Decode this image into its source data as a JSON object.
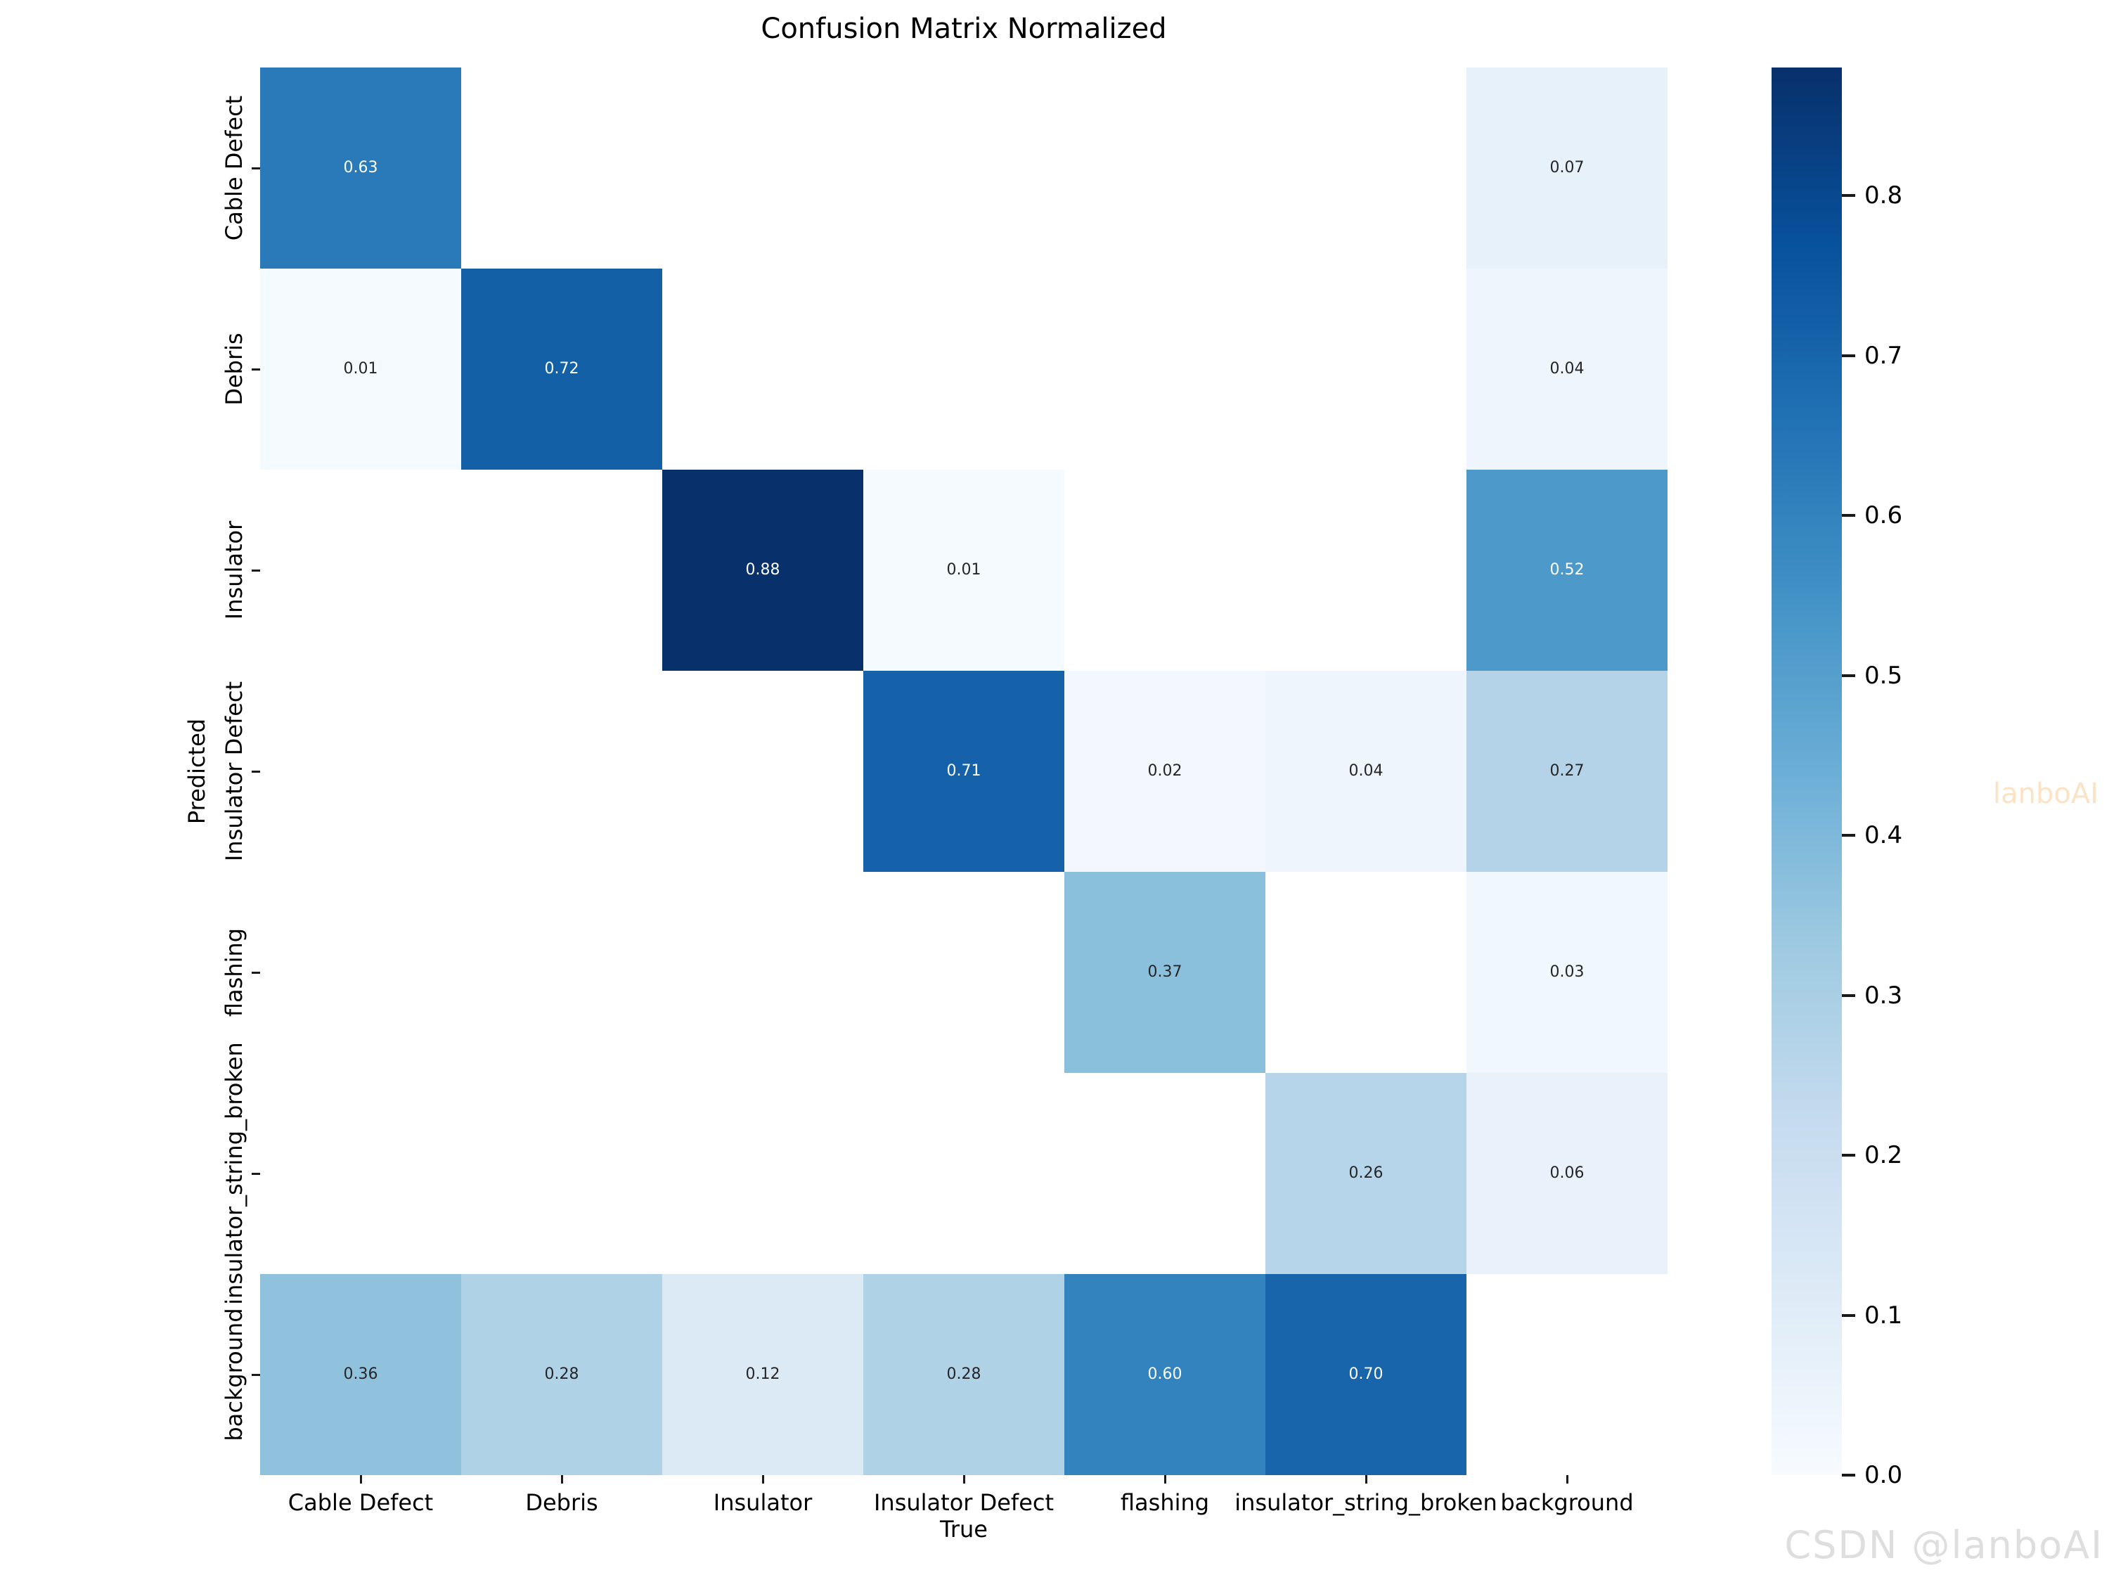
{
  "chart_data": {
    "type": "heatmap",
    "title": "Confusion Matrix Normalized",
    "xlabel": "True",
    "ylabel": "Predicted",
    "x_tick_labels": [
      "Cable Defect",
      "Debris",
      "Insulator",
      "Insulator Defect",
      "flashing",
      "insulator_string_broken",
      "background"
    ],
    "y_tick_labels": [
      "Cable Defect",
      "Debris",
      "Insulator",
      "Insulator Defect",
      "flashing",
      "insulator_string_broken",
      "background"
    ],
    "rows": [
      {
        "label": "Cable Defect",
        "values": [
          0.63,
          null,
          null,
          null,
          null,
          null,
          0.07
        ]
      },
      {
        "label": "Debris",
        "values": [
          0.01,
          0.72,
          null,
          null,
          null,
          null,
          0.04
        ]
      },
      {
        "label": "Insulator",
        "values": [
          null,
          null,
          0.88,
          0.01,
          null,
          null,
          0.52
        ]
      },
      {
        "label": "Insulator Defect",
        "values": [
          null,
          null,
          null,
          0.71,
          0.02,
          0.04,
          0.27
        ]
      },
      {
        "label": "flashing",
        "values": [
          null,
          null,
          null,
          null,
          0.37,
          null,
          0.03
        ]
      },
      {
        "label": "insulator_string_broken",
        "values": [
          null,
          null,
          null,
          null,
          null,
          0.26,
          0.06
        ]
      },
      {
        "label": "background",
        "values": [
          0.36,
          0.28,
          0.12,
          0.28,
          0.6,
          0.7,
          null
        ]
      }
    ],
    "value_decimals": 2,
    "vmin": 0.0,
    "vmax": 0.88,
    "colormap_name": "Blues",
    "colormap_stops": [
      "#f7fbff",
      "#deebf7",
      "#c6dbef",
      "#9ecae1",
      "#6baed6",
      "#4292c6",
      "#2171b5",
      "#08519c",
      "#08306b"
    ],
    "empty_cell_color": "#ffffff",
    "annot_color_dark": "#262626",
    "annot_color_light": "#ffffff",
    "white_text_threshold": 0.5,
    "grid": false,
    "legend_position": "right-colorbar",
    "colorbar": {
      "tick_values": [
        0.0,
        0.1,
        0.2,
        0.3,
        0.4,
        0.5,
        0.6,
        0.7,
        0.8
      ],
      "tick_labels": [
        "0.0",
        "0.1",
        "0.2",
        "0.3",
        "0.4",
        "0.5",
        "0.6",
        "0.7",
        "0.8"
      ],
      "tick_decimals": 1
    }
  },
  "watermarks": {
    "side_text": "lanboAI",
    "side_color": "#fce3c5",
    "bottom_text": "CSDN @lanboAI",
    "bottom_color": "#dedede"
  }
}
